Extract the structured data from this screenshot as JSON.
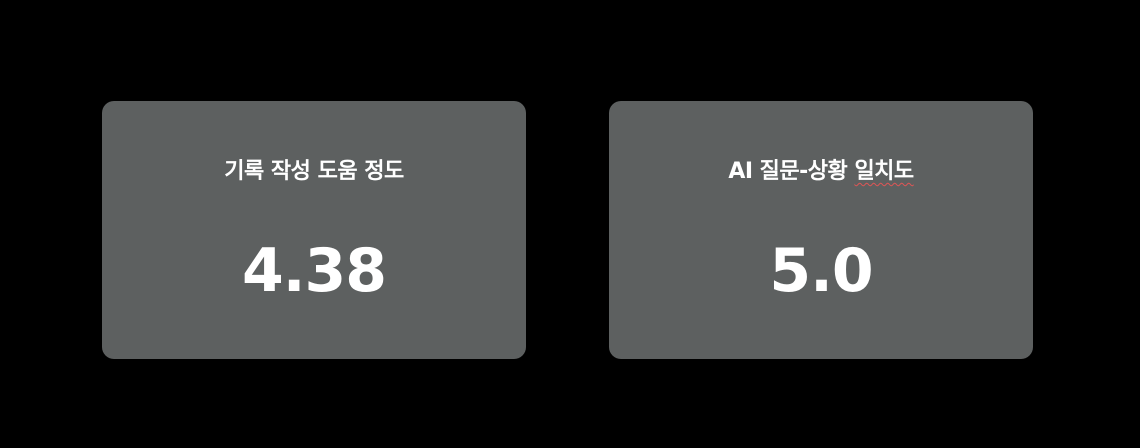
{
  "cards": [
    {
      "title": "기록 작성 도움 정도",
      "value": "4.38"
    },
    {
      "title_main": "AI 질문-상황 ",
      "title_marked": "일치도",
      "value": "5.0"
    }
  ],
  "colors": {
    "background": "#000000",
    "card": "#5d6060",
    "text": "#ffffff",
    "spellcheck_underline": "#e05555"
  }
}
